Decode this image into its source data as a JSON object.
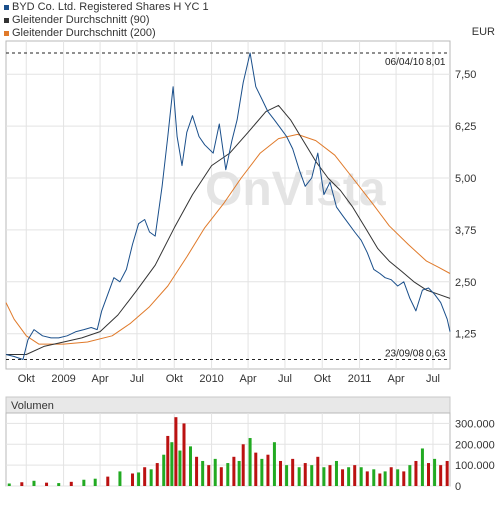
{
  "legend": [
    {
      "label": "BYD Co. Ltd. Registered Shares H YC 1",
      "color": "#1a4f8b"
    },
    {
      "label": "Gleitender Durchschnitt (90)",
      "color": "#333333"
    },
    {
      "label": "Gleitender Durchschnitt (200)",
      "color": "#e07a2a"
    }
  ],
  "currency": "EUR",
  "watermark": "OnVista",
  "chart_data": {
    "type": "line",
    "y_ticks": [
      "7,50",
      "6,25",
      "5,00",
      "3,75",
      "2,50",
      "1,25"
    ],
    "y_tick_values": [
      7.5,
      6.25,
      5.0,
      3.75,
      2.5,
      1.25
    ],
    "ylim": [
      0.4,
      8.3
    ],
    "x_ticks": [
      "Okt",
      "2009",
      "Apr",
      "Jul",
      "Okt",
      "2010",
      "Apr",
      "Jul",
      "Okt",
      "2011",
      "Apr",
      "Jul"
    ],
    "x_tick_dates": [
      "2008-10-01",
      "2009-01-01",
      "2009-04-01",
      "2009-07-01",
      "2009-10-01",
      "2010-01-01",
      "2010-04-01",
      "2010-07-01",
      "2010-10-01",
      "2011-01-01",
      "2011-04-01",
      "2011-07-01"
    ],
    "xlim": [
      "2008-08-12",
      "2011-08-12"
    ],
    "annotations": {
      "high": {
        "date": "06/04/10",
        "value_text": "8,01",
        "value": 8.01
      },
      "low": {
        "date": "23/09/08",
        "value_text": "0,63",
        "value": 0.63
      }
    },
    "series": [
      {
        "name": "BYD Co. Ltd. Registered Shares H YC 1",
        "color": "#1a4f8b",
        "points": [
          [
            "2008-08-12",
            0.75
          ],
          [
            "2008-09-01",
            0.7
          ],
          [
            "2008-09-23",
            0.63
          ],
          [
            "2008-10-05",
            1.1
          ],
          [
            "2008-10-20",
            1.35
          ],
          [
            "2008-11-10",
            1.2
          ],
          [
            "2008-12-01",
            1.15
          ],
          [
            "2008-12-20",
            1.15
          ],
          [
            "2009-01-10",
            1.2
          ],
          [
            "2009-02-01",
            1.3
          ],
          [
            "2009-02-20",
            1.35
          ],
          [
            "2009-03-10",
            1.4
          ],
          [
            "2009-03-25",
            1.35
          ],
          [
            "2009-04-05",
            1.8
          ],
          [
            "2009-04-20",
            2.2
          ],
          [
            "2009-05-05",
            2.6
          ],
          [
            "2009-05-20",
            2.5
          ],
          [
            "2009-06-05",
            2.8
          ],
          [
            "2009-06-20",
            3.4
          ],
          [
            "2009-07-05",
            3.9
          ],
          [
            "2009-07-20",
            4.0
          ],
          [
            "2009-08-01",
            3.7
          ],
          [
            "2009-08-15",
            3.6
          ],
          [
            "2009-09-01",
            4.8
          ],
          [
            "2009-09-15",
            6.0
          ],
          [
            "2009-09-28",
            7.2
          ],
          [
            "2009-10-08",
            6.0
          ],
          [
            "2009-10-20",
            5.3
          ],
          [
            "2009-11-01",
            6.1
          ],
          [
            "2009-11-15",
            6.5
          ],
          [
            "2009-12-01",
            6.0
          ],
          [
            "2009-12-15",
            5.8
          ],
          [
            "2010-01-05",
            5.6
          ],
          [
            "2010-01-20",
            6.3
          ],
          [
            "2010-02-05",
            5.2
          ],
          [
            "2010-02-20",
            5.9
          ],
          [
            "2010-03-05",
            6.4
          ],
          [
            "2010-03-20",
            7.3
          ],
          [
            "2010-04-06",
            8.01
          ],
          [
            "2010-04-20",
            7.2
          ],
          [
            "2010-05-05",
            6.9
          ],
          [
            "2010-05-20",
            6.6
          ],
          [
            "2010-06-05",
            6.4
          ],
          [
            "2010-06-20",
            6.2
          ],
          [
            "2010-07-05",
            6.0
          ],
          [
            "2010-07-20",
            5.7
          ],
          [
            "2010-08-05",
            5.2
          ],
          [
            "2010-08-20",
            4.8
          ],
          [
            "2010-09-05",
            5.0
          ],
          [
            "2010-09-20",
            5.6
          ],
          [
            "2010-10-05",
            4.6
          ],
          [
            "2010-10-20",
            4.9
          ],
          [
            "2010-11-05",
            4.3
          ],
          [
            "2010-11-20",
            4.1
          ],
          [
            "2010-12-05",
            3.9
          ],
          [
            "2010-12-20",
            3.7
          ],
          [
            "2011-01-05",
            3.5
          ],
          [
            "2011-01-20",
            3.2
          ],
          [
            "2011-02-05",
            2.8
          ],
          [
            "2011-02-20",
            2.7
          ],
          [
            "2011-03-05",
            2.6
          ],
          [
            "2011-03-20",
            2.55
          ],
          [
            "2011-04-05",
            2.4
          ],
          [
            "2011-04-20",
            2.5
          ],
          [
            "2011-05-05",
            2.1
          ],
          [
            "2011-05-20",
            1.8
          ],
          [
            "2011-06-05",
            2.3
          ],
          [
            "2011-06-20",
            2.35
          ],
          [
            "2011-07-05",
            2.2
          ],
          [
            "2011-07-20",
            2.0
          ],
          [
            "2011-08-05",
            1.6
          ],
          [
            "2011-08-12",
            1.3
          ]
        ]
      },
      {
        "name": "Gleitender Durchschnitt (90)",
        "color": "#333333",
        "points": [
          [
            "2008-08-12",
            0.75
          ],
          [
            "2008-10-01",
            0.75
          ],
          [
            "2008-11-15",
            0.95
          ],
          [
            "2009-01-01",
            1.05
          ],
          [
            "2009-02-15",
            1.15
          ],
          [
            "2009-04-01",
            1.3
          ],
          [
            "2009-05-15",
            1.7
          ],
          [
            "2009-07-01",
            2.3
          ],
          [
            "2009-08-15",
            2.9
          ],
          [
            "2009-10-01",
            3.8
          ],
          [
            "2009-11-15",
            4.6
          ],
          [
            "2010-01-01",
            5.3
          ],
          [
            "2010-02-15",
            5.6
          ],
          [
            "2010-04-01",
            6.1
          ],
          [
            "2010-05-15",
            6.6
          ],
          [
            "2010-06-15",
            6.75
          ],
          [
            "2010-07-15",
            6.4
          ],
          [
            "2010-08-15",
            5.9
          ],
          [
            "2010-09-15",
            5.4
          ],
          [
            "2010-10-15",
            5.0
          ],
          [
            "2010-11-15",
            4.7
          ],
          [
            "2010-12-15",
            4.3
          ],
          [
            "2011-01-15",
            3.8
          ],
          [
            "2011-02-15",
            3.3
          ],
          [
            "2011-03-15",
            3.0
          ],
          [
            "2011-04-15",
            2.75
          ],
          [
            "2011-05-15",
            2.5
          ],
          [
            "2011-06-15",
            2.3
          ],
          [
            "2011-07-15",
            2.2
          ],
          [
            "2011-08-12",
            2.1
          ]
        ]
      },
      {
        "name": "Gleitender Durchschnitt (200)",
        "color": "#e07a2a",
        "points": [
          [
            "2008-08-12",
            2.0
          ],
          [
            "2008-09-01",
            1.6
          ],
          [
            "2008-10-01",
            1.2
          ],
          [
            "2008-11-01",
            1.0
          ],
          [
            "2009-01-01",
            1.0
          ],
          [
            "2009-03-01",
            1.05
          ],
          [
            "2009-05-01",
            1.2
          ],
          [
            "2009-06-15",
            1.5
          ],
          [
            "2009-08-01",
            1.9
          ],
          [
            "2009-09-15",
            2.4
          ],
          [
            "2009-11-01",
            3.1
          ],
          [
            "2009-12-15",
            3.8
          ],
          [
            "2010-02-01",
            4.4
          ],
          [
            "2010-03-15",
            5.0
          ],
          [
            "2010-05-01",
            5.6
          ],
          [
            "2010-06-15",
            5.95
          ],
          [
            "2010-08-01",
            6.05
          ],
          [
            "2010-09-15",
            5.9
          ],
          [
            "2010-11-01",
            5.55
          ],
          [
            "2010-12-15",
            5.0
          ],
          [
            "2011-02-01",
            4.4
          ],
          [
            "2011-03-15",
            3.85
          ],
          [
            "2011-05-01",
            3.4
          ],
          [
            "2011-06-15",
            3.0
          ],
          [
            "2011-07-15",
            2.85
          ],
          [
            "2011-08-12",
            2.7
          ]
        ]
      }
    ],
    "volume": {
      "title": "Volumen",
      "y_ticks": [
        "300.000",
        "200.000",
        "100.000",
        "0"
      ],
      "y_tick_values": [
        300000,
        200000,
        100000,
        0
      ],
      "ylim": [
        0,
        350000
      ],
      "up_color": "#22aa22",
      "down_color": "#bb1111",
      "bars": [
        [
          "2008-08-20",
          12000,
          "u"
        ],
        [
          "2008-09-20",
          18000,
          "d"
        ],
        [
          "2008-10-20",
          25000,
          "u"
        ],
        [
          "2008-11-20",
          16000,
          "d"
        ],
        [
          "2008-12-20",
          14000,
          "u"
        ],
        [
          "2009-01-20",
          20000,
          "d"
        ],
        [
          "2009-02-20",
          30000,
          "u"
        ],
        [
          "2009-03-20",
          35000,
          "u"
        ],
        [
          "2009-04-20",
          45000,
          "d"
        ],
        [
          "2009-05-20",
          70000,
          "u"
        ],
        [
          "2009-06-20",
          60000,
          "d"
        ],
        [
          "2009-07-05",
          65000,
          "u"
        ],
        [
          "2009-07-20",
          90000,
          "d"
        ],
        [
          "2009-08-05",
          80000,
          "u"
        ],
        [
          "2009-08-20",
          110000,
          "d"
        ],
        [
          "2009-09-05",
          150000,
          "u"
        ],
        [
          "2009-09-15",
          240000,
          "d"
        ],
        [
          "2009-09-25",
          210000,
          "u"
        ],
        [
          "2009-10-05",
          330000,
          "d"
        ],
        [
          "2009-10-15",
          170000,
          "u"
        ],
        [
          "2009-10-25",
          300000,
          "d"
        ],
        [
          "2009-11-10",
          190000,
          "u"
        ],
        [
          "2009-11-25",
          140000,
          "d"
        ],
        [
          "2009-12-10",
          120000,
          "u"
        ],
        [
          "2009-12-25",
          100000,
          "d"
        ],
        [
          "2010-01-10",
          130000,
          "u"
        ],
        [
          "2010-01-25",
          90000,
          "d"
        ],
        [
          "2010-02-10",
          110000,
          "u"
        ],
        [
          "2010-02-25",
          140000,
          "d"
        ],
        [
          "2010-03-10",
          120000,
          "u"
        ],
        [
          "2010-03-20",
          200000,
          "d"
        ],
        [
          "2010-04-06",
          230000,
          "u"
        ],
        [
          "2010-04-20",
          160000,
          "d"
        ],
        [
          "2010-05-05",
          130000,
          "u"
        ],
        [
          "2010-05-20",
          150000,
          "d"
        ],
        [
          "2010-06-05",
          210000,
          "u"
        ],
        [
          "2010-06-20",
          120000,
          "d"
        ],
        [
          "2010-07-05",
          100000,
          "u"
        ],
        [
          "2010-07-20",
          130000,
          "d"
        ],
        [
          "2010-08-05",
          90000,
          "u"
        ],
        [
          "2010-08-20",
          110000,
          "d"
        ],
        [
          "2010-09-05",
          100000,
          "u"
        ],
        [
          "2010-09-20",
          140000,
          "d"
        ],
        [
          "2010-10-05",
          90000,
          "u"
        ],
        [
          "2010-10-20",
          100000,
          "d"
        ],
        [
          "2010-11-05",
          120000,
          "u"
        ],
        [
          "2010-11-20",
          80000,
          "d"
        ],
        [
          "2010-12-05",
          90000,
          "u"
        ],
        [
          "2010-12-20",
          100000,
          "d"
        ],
        [
          "2011-01-05",
          90000,
          "u"
        ],
        [
          "2011-01-20",
          70000,
          "d"
        ],
        [
          "2011-02-05",
          80000,
          "u"
        ],
        [
          "2011-02-20",
          60000,
          "d"
        ],
        [
          "2011-03-05",
          70000,
          "u"
        ],
        [
          "2011-03-20",
          90000,
          "d"
        ],
        [
          "2011-04-05",
          80000,
          "u"
        ],
        [
          "2011-04-20",
          70000,
          "d"
        ],
        [
          "2011-05-05",
          100000,
          "u"
        ],
        [
          "2011-05-20",
          120000,
          "d"
        ],
        [
          "2011-06-05",
          180000,
          "u"
        ],
        [
          "2011-06-20",
          110000,
          "d"
        ],
        [
          "2011-07-05",
          130000,
          "u"
        ],
        [
          "2011-07-20",
          100000,
          "d"
        ],
        [
          "2011-08-05",
          120000,
          "d"
        ]
      ]
    }
  }
}
